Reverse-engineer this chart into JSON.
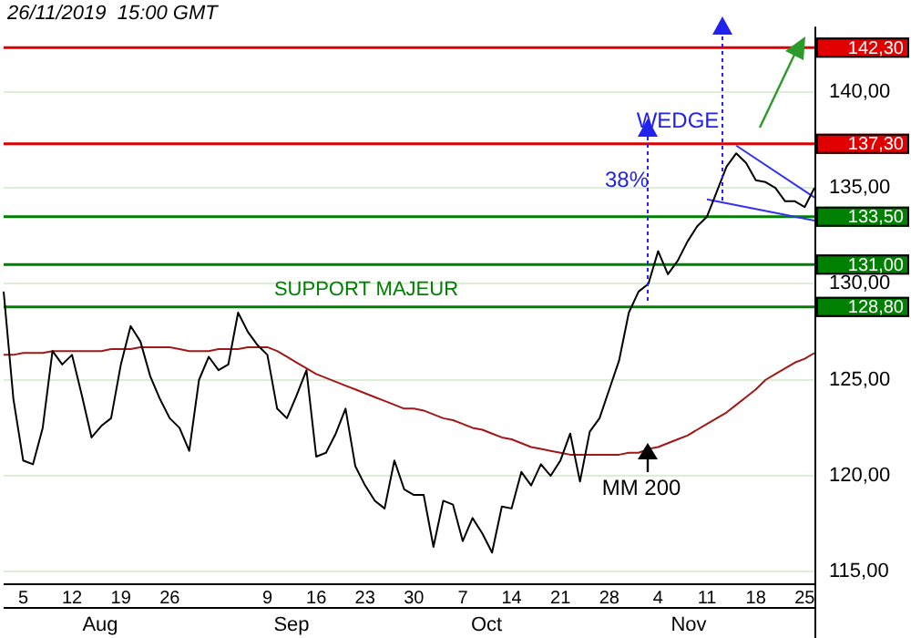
{
  "chart_data": {
    "type": "line",
    "categories": [
      null,
      null,
      "5",
      null,
      null,
      null,
      null,
      "12",
      null,
      null,
      null,
      null,
      "19",
      null,
      null,
      null,
      null,
      "26",
      null,
      null,
      null,
      null,
      null,
      null,
      null,
      null,
      null,
      "9",
      null,
      null,
      null,
      null,
      "16",
      null,
      null,
      null,
      null,
      "23",
      null,
      null,
      null,
      null,
      "30",
      null,
      null,
      null,
      null,
      "7",
      null,
      null,
      null,
      null,
      "14",
      null,
      null,
      null,
      null,
      "21",
      null,
      null,
      null,
      null,
      "28",
      null,
      null,
      null,
      null,
      "4",
      null,
      null,
      null,
      null,
      "11",
      null,
      null,
      null,
      null,
      "18",
      null,
      null,
      null,
      null,
      "25",
      null
    ],
    "series": [
      {
        "color": "#000000",
        "values": [
          129.6,
          124.0,
          120.8,
          120.6,
          122.5,
          126.5,
          125.8,
          126.3,
          124.2,
          122.0,
          122.6,
          123.0,
          125.8,
          127.8,
          127.0,
          125.2,
          124.0,
          123.0,
          122.5,
          121.3,
          125.0,
          126.2,
          125.5,
          125.8,
          128.5,
          127.5,
          126.8,
          126.3,
          123.5,
          123.0,
          124.2,
          125.5,
          121.0,
          121.2,
          122.2,
          123.5,
          120.5,
          119.5,
          118.7,
          118.3,
          120.8,
          119.3,
          119.0,
          119.0,
          116.3,
          118.7,
          118.5,
          116.6,
          117.8,
          117.0,
          116.0,
          118.4,
          118.3,
          120.2,
          119.5,
          120.6,
          120.0,
          120.8,
          122.2,
          119.7,
          122.3,
          123.0,
          124.5,
          126.0,
          128.5,
          129.6,
          130.0,
          131.7,
          130.5,
          131.2,
          132.2,
          133.0,
          133.5,
          134.8,
          136.1,
          136.8,
          136.3,
          135.4,
          135.3,
          135.0,
          134.3,
          134.3,
          134.0,
          135.0
        ]
      },
      {
        "color": "#a01818",
        "values": [
          126.3,
          126.3,
          126.4,
          126.4,
          126.4,
          126.5,
          126.5,
          126.5,
          126.5,
          126.5,
          126.5,
          126.6,
          126.6,
          126.6,
          126.7,
          126.7,
          126.7,
          126.7,
          126.6,
          126.5,
          126.5,
          126.5,
          126.6,
          126.6,
          126.6,
          126.7,
          126.7,
          126.7,
          126.5,
          126.2,
          125.9,
          125.6,
          125.3,
          125.1,
          124.9,
          124.7,
          124.5,
          124.3,
          124.1,
          123.9,
          123.7,
          123.5,
          123.5,
          123.4,
          123.2,
          123.0,
          122.9,
          122.7,
          122.5,
          122.4,
          122.2,
          122.0,
          121.9,
          121.7,
          121.5,
          121.4,
          121.3,
          121.2,
          121.1,
          121.1,
          121.1,
          121.1,
          121.1,
          121.1,
          121.2,
          121.2,
          121.4,
          121.5,
          121.7,
          121.9,
          122.1,
          122.4,
          122.7,
          123.0,
          123.3,
          123.7,
          124.1,
          124.5,
          125.0,
          125.3,
          125.6,
          125.9,
          126.1,
          126.4
        ]
      },
      {
        "color": "#3333ee",
        "values": [
          null,
          null,
          null,
          null,
          null,
          null,
          null,
          null,
          null,
          null,
          null,
          null,
          null,
          null,
          null,
          null,
          null,
          null,
          null,
          null,
          null,
          null,
          null,
          null,
          null,
          null,
          null,
          null,
          null,
          null,
          null,
          null,
          null,
          null,
          null,
          null,
          null,
          null,
          null,
          null,
          null,
          null,
          null,
          null,
          null,
          null,
          null,
          null,
          null,
          null,
          null,
          null,
          null,
          null,
          null,
          null,
          null,
          null,
          null,
          null,
          null,
          null,
          null,
          null,
          null,
          null,
          null,
          null,
          null,
          null,
          null,
          null,
          null,
          null,
          null,
          137.2,
          null,
          null,
          null,
          null,
          null,
          null,
          null,
          134.5
        ]
      },
      {
        "color": "#3333ee",
        "values": [
          null,
          null,
          null,
          null,
          null,
          null,
          null,
          null,
          null,
          null,
          null,
          null,
          null,
          null,
          null,
          null,
          null,
          null,
          null,
          null,
          null,
          null,
          null,
          null,
          null,
          null,
          null,
          null,
          null,
          null,
          null,
          null,
          null,
          null,
          null,
          null,
          null,
          null,
          null,
          null,
          null,
          null,
          null,
          null,
          null,
          null,
          null,
          null,
          null,
          null,
          null,
          null,
          null,
          null,
          null,
          null,
          null,
          null,
          null,
          null,
          null,
          null,
          null,
          null,
          null,
          null,
          null,
          null,
          null,
          null,
          null,
          null,
          134.4,
          null,
          null,
          null,
          null,
          null,
          null,
          null,
          null,
          null,
          null,
          133.3
        ]
      }
    ],
    "ylim": [
      114.4,
      143.4
    ],
    "yticks": [
      {
        "value": 115,
        "label": "115,00"
      },
      {
        "value": 120,
        "label": "120,00"
      },
      {
        "value": 125,
        "label": "125,00"
      },
      {
        "value": 130,
        "label": "130,00"
      },
      {
        "value": 135,
        "label": "135,00"
      },
      {
        "value": 140,
        "label": "140,00"
      }
    ],
    "grid": "y",
    "ref_lines": [
      {
        "axis": "y",
        "value": 142.3,
        "label": "142,30",
        "color": "#e00000"
      },
      {
        "axis": "y",
        "value": 137.3,
        "label": "137,30",
        "color": "#e00000"
      },
      {
        "axis": "y",
        "value": 133.5,
        "label": "133,50",
        "color": "#008000"
      },
      {
        "axis": "y",
        "value": 131.0,
        "label": "131,00",
        "color": "#008000"
      },
      {
        "axis": "y",
        "value": 128.8,
        "label": "128,80",
        "color": "#008000"
      }
    ],
    "annotations": [
      "26/11/2019  15:00 GMT",
      {
        "text": "SUPPORT MAJEUR",
        "y": 128.8
      },
      {
        "text": "WEDGE",
        "y": 137.2
      },
      "38%",
      "MM 200",
      "Aug",
      "Sep",
      "Oct",
      "Nov"
    ]
  }
}
